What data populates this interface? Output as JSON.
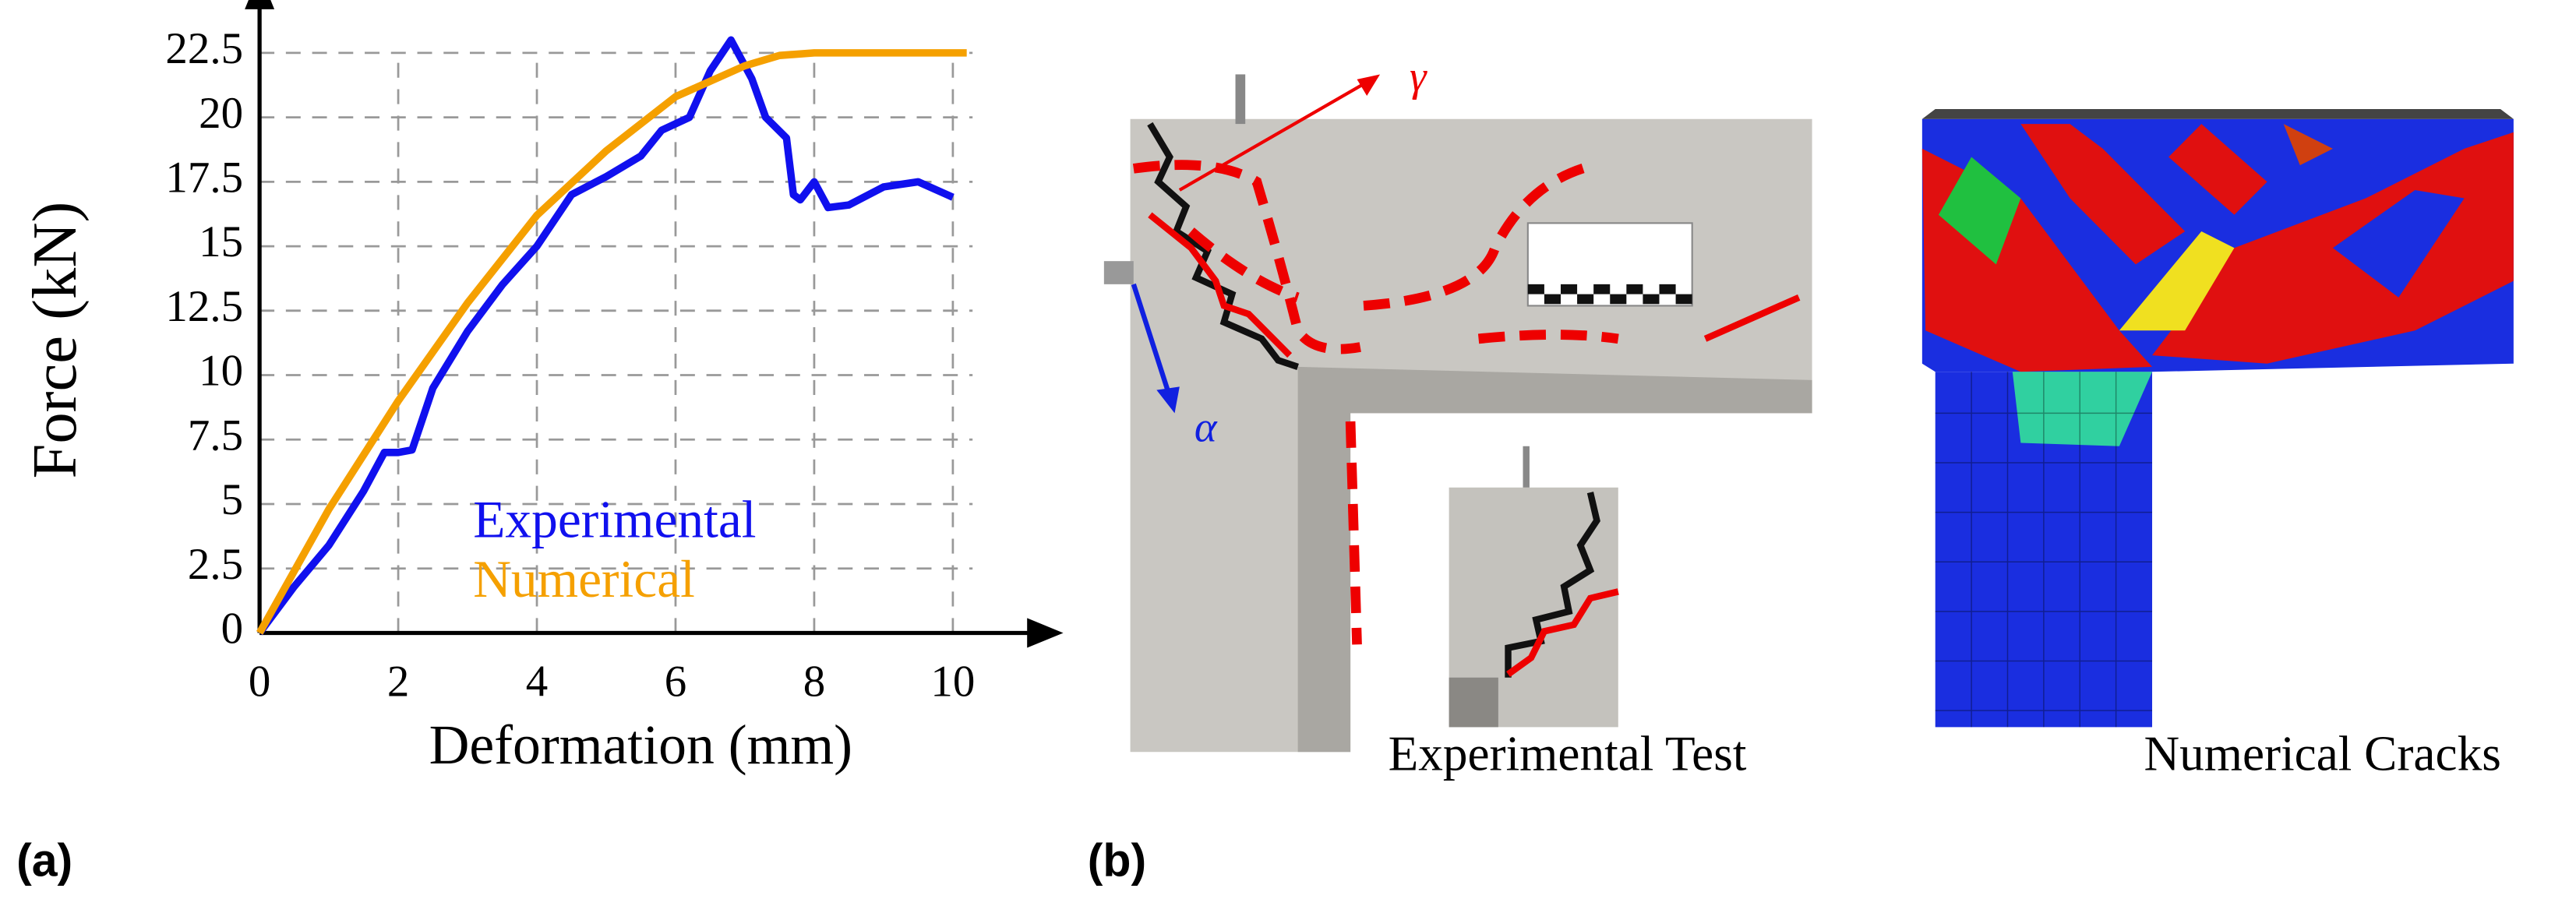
{
  "chart_data": {
    "type": "line",
    "xlabel": "Deformation (mm)",
    "ylabel": "Force (kN)",
    "xlim": [
      0,
      11
    ],
    "xticks": [
      0,
      2,
      4,
      6,
      8,
      10
    ],
    "ylim": [
      0,
      24
    ],
    "yticks": [
      0,
      2.5,
      5,
      7.5,
      10,
      12.5,
      15,
      17.5,
      20,
      22.5
    ],
    "grid": true,
    "series": [
      {
        "name": "Experimental",
        "color": "#1010ee",
        "x": [
          0,
          0.5,
          1,
          1.5,
          1.8,
          2,
          2.2,
          2.5,
          3,
          3.5,
          4,
          4.5,
          5,
          5.5,
          5.8,
          6.2,
          6.5,
          6.8,
          7.1,
          7.3,
          7.6,
          7.7,
          7.8,
          8,
          8.2,
          8.5,
          9,
          9.5,
          10
        ],
        "values": [
          0,
          1.8,
          3.4,
          5.5,
          7,
          7,
          7.1,
          9.5,
          11.7,
          13.5,
          15,
          17,
          17.7,
          18.5,
          19.5,
          20,
          21.8,
          23,
          21.5,
          20,
          19.2,
          17,
          16.8,
          17.5,
          16.5,
          16.6,
          17.3,
          17.5,
          16.9
        ]
      },
      {
        "name": "Numerical",
        "color": "#f5a000",
        "x": [
          0,
          1,
          2,
          3,
          4,
          5,
          6,
          7,
          7.5,
          8,
          9,
          10.2
        ],
        "values": [
          0,
          4.8,
          9,
          12.8,
          16.2,
          18.7,
          20.8,
          22,
          22.4,
          22.5,
          22.5,
          22.5
        ]
      }
    ]
  },
  "figure": {
    "panel_a": "(a)",
    "panel_b": "(b)",
    "gamma": "γ",
    "alpha": "α",
    "caption_experimental": "Experimental Test",
    "caption_numerical": "Numerical Cracks"
  }
}
